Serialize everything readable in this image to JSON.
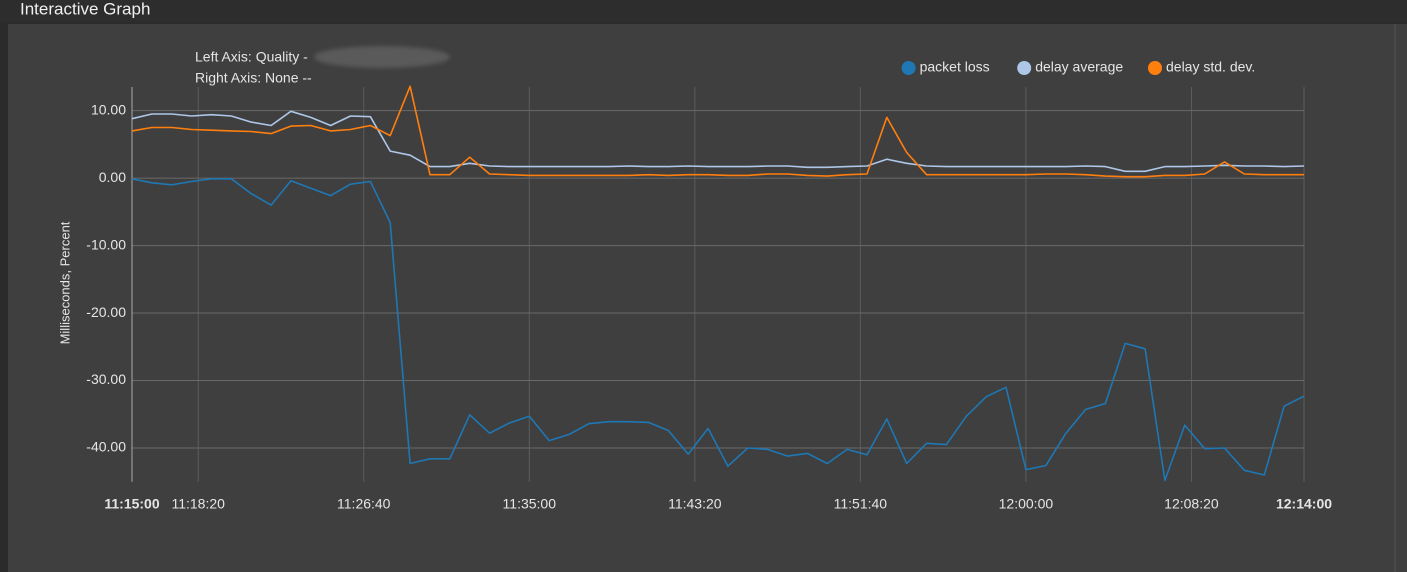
{
  "panel_title": "Interactive Graph",
  "chart_data": {
    "type": "line",
    "annotations": [
      "Left Axis: Quality -",
      "Right Axis: None --"
    ],
    "y_label": "Milliseconds, Percent",
    "x": [
      "11:15:00",
      "11:16:00",
      "11:17:00",
      "11:18:00",
      "11:19:00",
      "11:20:00",
      "11:21:00",
      "11:22:00",
      "11:23:00",
      "11:24:00",
      "11:25:00",
      "11:26:00",
      "11:27:00",
      "11:28:00",
      "11:29:00",
      "11:30:00",
      "11:31:00",
      "11:32:00",
      "11:33:00",
      "11:34:00",
      "11:35:00",
      "11:36:00",
      "11:37:00",
      "11:38:00",
      "11:39:00",
      "11:40:00",
      "11:41:00",
      "11:42:00",
      "11:43:00",
      "11:44:00",
      "11:45:00",
      "11:46:00",
      "11:47:00",
      "11:48:00",
      "11:49:00",
      "11:50:00",
      "11:51:00",
      "11:52:00",
      "11:53:00",
      "11:54:00",
      "11:55:00",
      "11:56:00",
      "11:57:00",
      "11:58:00",
      "11:59:00",
      "12:00:00",
      "12:01:00",
      "12:02:00",
      "12:03:00",
      "12:04:00",
      "12:05:00",
      "12:06:00",
      "12:07:00",
      "12:08:00",
      "12:09:00",
      "12:10:00",
      "12:11:00",
      "12:12:00",
      "12:13:00",
      "12:14:00"
    ],
    "xlim": [
      "11:15:00",
      "12:14:00"
    ],
    "xticks": [
      "11:15:00",
      "11:18:20",
      "11:26:40",
      "11:35:00",
      "11:43:20",
      "11:51:40",
      "12:00:00",
      "12:08:20",
      "12:14:00"
    ],
    "ylim": [
      -45,
      13.5
    ],
    "yticks": [
      {
        "value": 10,
        "label": "10.00"
      },
      {
        "value": 0,
        "label": "0.00"
      },
      {
        "value": -10,
        "label": "-10.00"
      },
      {
        "value": -20,
        "label": "-20.00"
      },
      {
        "value": -30,
        "label": "-30.00"
      },
      {
        "value": -40,
        "label": "-40.00"
      }
    ],
    "grid": true,
    "legend": "top-right",
    "series": [
      {
        "name": "packet loss",
        "color": "#1f77b4",
        "values": [
          -0.1,
          -0.7,
          -1.0,
          -0.5,
          -0.1,
          -0.1,
          -2.3,
          -4.0,
          -0.4,
          -1.5,
          -2.6,
          -0.9,
          -0.5,
          -6.6,
          -42.3,
          -41.6,
          -41.6,
          -35.1,
          -37.8,
          -36.3,
          -35.3,
          -38.9,
          -38.0,
          -36.4,
          -36.1,
          -36.1,
          -36.2,
          -37.4,
          -40.9,
          -37.1,
          -42.7,
          -40.0,
          -40.2,
          -41.2,
          -40.8,
          -42.3,
          -40.2,
          -41.0,
          -35.7,
          -42.3,
          -39.3,
          -39.5,
          -35.3,
          -32.4,
          -31.0,
          -43.2,
          -42.6,
          -37.9,
          -34.3,
          -33.4,
          -24.5,
          -25.3,
          -44.8,
          -36.6,
          -40.1,
          -40.0,
          -43.3,
          -44.0,
          -33.8,
          -32.3
        ]
      },
      {
        "name": "delay average",
        "color": "#aec7e8",
        "values": [
          8.8,
          9.5,
          9.5,
          9.2,
          9.4,
          9.2,
          8.3,
          7.8,
          9.9,
          9.0,
          7.8,
          9.2,
          9.1,
          4.0,
          3.4,
          1.7,
          1.7,
          2.2,
          1.8,
          1.7,
          1.7,
          1.7,
          1.7,
          1.7,
          1.7,
          1.8,
          1.7,
          1.7,
          1.8,
          1.7,
          1.7,
          1.7,
          1.8,
          1.8,
          1.6,
          1.6,
          1.7,
          1.8,
          2.8,
          2.2,
          1.8,
          1.7,
          1.7,
          1.7,
          1.7,
          1.7,
          1.7,
          1.7,
          1.8,
          1.7,
          1.0,
          1.0,
          1.7,
          1.7,
          1.8,
          1.9,
          1.8,
          1.8,
          1.7,
          1.8
        ]
      },
      {
        "name": "delay std. dev.",
        "color": "#ff7f0e",
        "values": [
          7.0,
          7.5,
          7.5,
          7.2,
          7.1,
          7.0,
          6.9,
          6.6,
          7.7,
          7.8,
          7.0,
          7.2,
          7.8,
          6.3,
          13.6,
          0.5,
          0.5,
          3.1,
          0.6,
          0.5,
          0.4,
          0.4,
          0.4,
          0.4,
          0.4,
          0.4,
          0.5,
          0.4,
          0.5,
          0.5,
          0.4,
          0.4,
          0.6,
          0.6,
          0.4,
          0.3,
          0.5,
          0.6,
          9.0,
          3.8,
          0.5,
          0.5,
          0.5,
          0.5,
          0.5,
          0.5,
          0.6,
          0.6,
          0.5,
          0.3,
          0.2,
          0.2,
          0.4,
          0.4,
          0.6,
          2.4,
          0.6,
          0.5,
          0.5,
          0.5
        ]
      }
    ]
  }
}
